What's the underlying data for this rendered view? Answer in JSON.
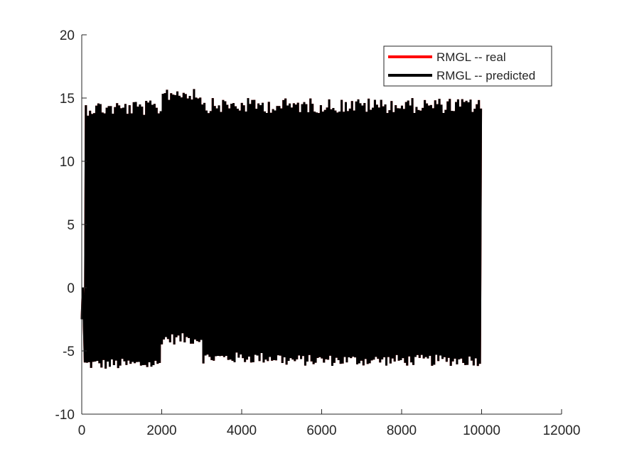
{
  "chart_data": {
    "type": "line",
    "title": "",
    "xlabel": "",
    "ylabel": "",
    "xlim": [
      0,
      12000
    ],
    "ylim": [
      -10,
      20
    ],
    "xticks": [
      0,
      2000,
      4000,
      6000,
      8000,
      10000,
      12000
    ],
    "yticks": [
      -10,
      -5,
      0,
      5,
      10,
      15,
      20
    ],
    "xtick_labels": [
      "0",
      "2000",
      "4000",
      "6000",
      "8000",
      "10000",
      "12000"
    ],
    "ytick_labels": [
      "-10",
      "-5",
      "0",
      "5",
      "10",
      "15",
      "20"
    ],
    "grid": false,
    "legend_position": "top-right",
    "series": [
      {
        "name": "RMGL -- real",
        "color": "#ff0000",
        "x_range": [
          0,
          10000
        ],
        "segments": [
          {
            "x": [
              0,
              2000
            ],
            "min": -6.5,
            "max": 14.8
          },
          {
            "x": [
              2000,
              3000
            ],
            "min": -4.5,
            "max": 16.0
          },
          {
            "x": [
              3000,
              5000
            ],
            "min": -6.0,
            "max": 15.0
          },
          {
            "x": [
              5000,
              10000
            ],
            "min": -6.2,
            "max": 15.0
          }
        ]
      },
      {
        "name": "RMGL -- predicted",
        "color": "#000000",
        "x_range": [
          0,
          10000
        ],
        "segments": [
          {
            "x": [
              0,
              2000
            ],
            "min": -6.5,
            "max": 14.8
          },
          {
            "x": [
              2000,
              3000
            ],
            "min": -4.5,
            "max": 16.0
          },
          {
            "x": [
              3000,
              5000
            ],
            "min": -6.0,
            "max": 15.0
          },
          {
            "x": [
              5000,
              10000
            ],
            "min": -6.2,
            "max": 15.0
          }
        ]
      }
    ]
  }
}
